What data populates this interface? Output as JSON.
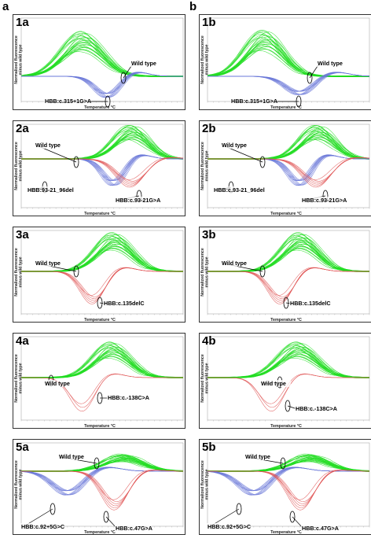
{
  "columns": [
    {
      "letter": "a"
    },
    {
      "letter": "b"
    }
  ],
  "axis": {
    "xlabel": "Temperature °C",
    "ylabel_line1": "Normalized fluorescence",
    "ylabel_line2": "minus wild type"
  },
  "colors": {
    "wild_type": "#22dd22",
    "variant_blue": "#6a78d8",
    "variant_red": "#e05454",
    "variant_grey": "#b0b0c8"
  },
  "chart_data": [
    {
      "id": "1a",
      "type": "line",
      "title": "1a",
      "series": [
        {
          "name": "Wild type",
          "color": "green"
        },
        {
          "name": "HBB:c.315+1G>A",
          "color": "blue"
        }
      ],
      "annotations": [
        {
          "text": "Wild type"
        },
        {
          "text": "HBB:c.315+1G>A"
        }
      ]
    },
    {
      "id": "1b",
      "type": "line",
      "title": "1b",
      "series": [
        {
          "name": "Wild type",
          "color": "green"
        },
        {
          "name": "HBB:c.315+1G>A",
          "color": "blue"
        }
      ],
      "annotations": [
        {
          "text": "Wild type"
        },
        {
          "text": "HBB:c.315+1G>A"
        }
      ]
    },
    {
      "id": "2a",
      "type": "line",
      "title": "2a",
      "series": [
        {
          "name": "Wild type",
          "color": "green"
        },
        {
          "name": "HBB:c.93-21G>A",
          "color": "blue"
        },
        {
          "name": "HBB:93-21_96del",
          "color": "red"
        }
      ],
      "annotations": [
        {
          "text": "Wild type"
        },
        {
          "text": "HBB:93-21_96del"
        },
        {
          "text": "HBB:c.93-21G>A"
        }
      ]
    },
    {
      "id": "2b",
      "type": "line",
      "title": "2b",
      "series": [
        {
          "name": "Wild type",
          "color": "green"
        },
        {
          "name": "HBB:c.93-21G>A",
          "color": "blue"
        },
        {
          "name": "HBB:c.93-21_96del",
          "color": "red"
        }
      ],
      "annotations": [
        {
          "text": "Wild type"
        },
        {
          "text": "HBB:c.93-21_96del"
        },
        {
          "text": "HBB:c.93-21G>A"
        }
      ]
    },
    {
      "id": "3a",
      "type": "line",
      "title": "3a",
      "series": [
        {
          "name": "Wild type",
          "color": "green"
        },
        {
          "name": "HBB:c.135delC",
          "color": "red"
        }
      ],
      "annotations": [
        {
          "text": "Wild type"
        },
        {
          "text": "HBB:c.135delC"
        }
      ]
    },
    {
      "id": "3b",
      "type": "line",
      "title": "3b",
      "series": [
        {
          "name": "Wild type",
          "color": "green"
        },
        {
          "name": "HBB:c.135delC",
          "color": "red"
        }
      ],
      "annotations": [
        {
          "text": "Wild type"
        },
        {
          "text": "HBB:c.135delC"
        }
      ]
    },
    {
      "id": "4a",
      "type": "line",
      "title": "4a",
      "series": [
        {
          "name": "Wild type",
          "color": "green"
        },
        {
          "name": "HBB:c.-138C>A",
          "color": "red"
        }
      ],
      "annotations": [
        {
          "text": "Wild type"
        },
        {
          "text": "HBB:c.-138C>A"
        }
      ]
    },
    {
      "id": "4b",
      "type": "line",
      "title": "4b",
      "series": [
        {
          "name": "Wild type",
          "color": "green"
        },
        {
          "name": "HBB:c.-138C>A",
          "color": "red"
        }
      ],
      "annotations": [
        {
          "text": "Wild type"
        },
        {
          "text": "HBB:c.-138C>A"
        }
      ]
    },
    {
      "id": "5a",
      "type": "line",
      "title": "5a",
      "series": [
        {
          "name": "Wild type",
          "color": "green"
        },
        {
          "name": "HBB:c.92+5G>C",
          "color": "blue"
        },
        {
          "name": "HBB:c.47G>A",
          "color": "red"
        }
      ],
      "annotations": [
        {
          "text": "Wild type"
        },
        {
          "text": "HBB:c.92+5G>C"
        },
        {
          "text": "HBB:c.47G>A"
        }
      ]
    },
    {
      "id": "5b",
      "type": "line",
      "title": "5b",
      "series": [
        {
          "name": "Wild type",
          "color": "green"
        },
        {
          "name": "HBB:c.92+5G>C",
          "color": "blue"
        },
        {
          "name": "HBB:c.47G>A",
          "color": "red"
        }
      ],
      "annotations": [
        {
          "text": "Wild type"
        },
        {
          "text": "HBB:c.92+5G>C"
        },
        {
          "text": "HBB:c.47G>A"
        }
      ]
    }
  ]
}
